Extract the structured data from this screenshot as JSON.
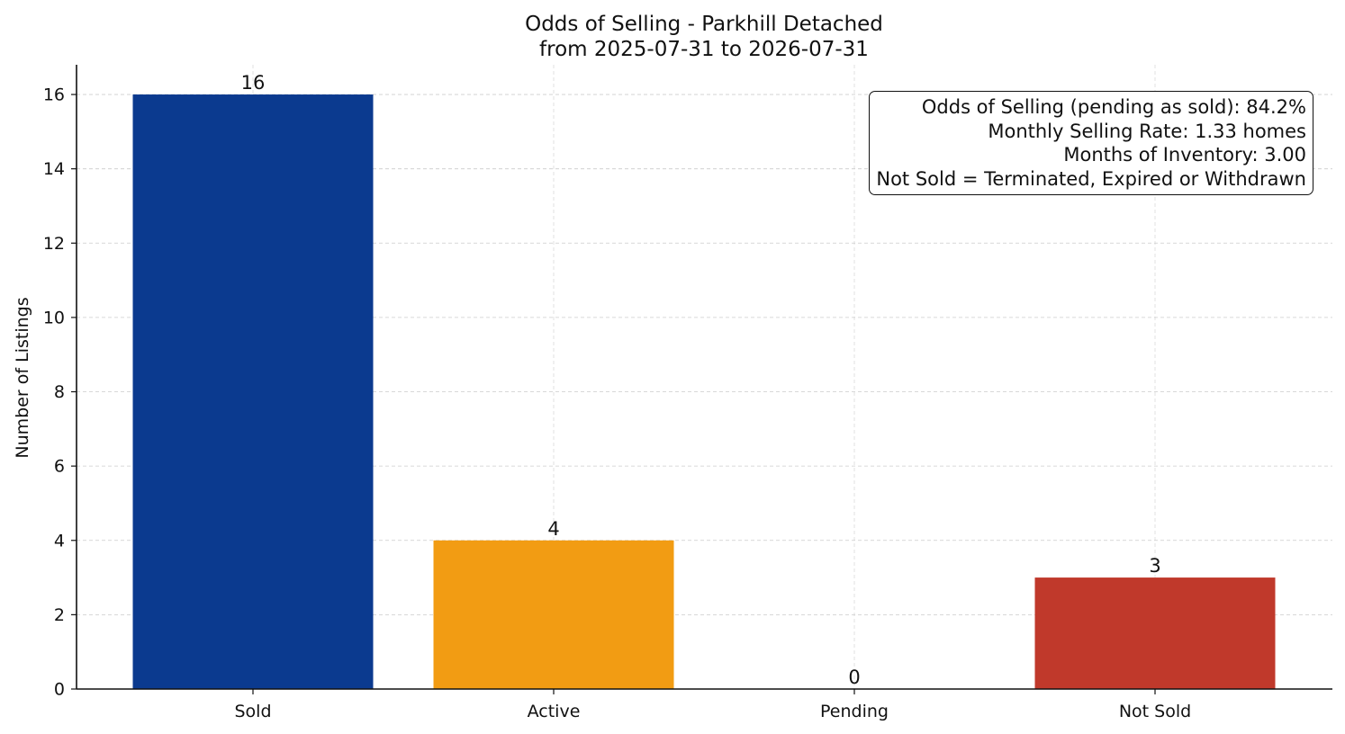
{
  "chart_data": {
    "type": "bar",
    "title": "Odds of Selling - Parkhill Detached",
    "subtitle": "from 2025-07-31 to 2026-07-31",
    "xlabel": "",
    "ylabel": "Number of Listings",
    "categories": [
      "Sold",
      "Active",
      "Pending",
      "Not Sold"
    ],
    "values": [
      16,
      4,
      0,
      3
    ],
    "data_labels": [
      "16",
      "4",
      "0",
      "3"
    ],
    "colors": [
      "#0b3a8f",
      "#f29c13",
      "#f0a030",
      "#c0392b"
    ],
    "ylim": [
      0,
      16.8
    ],
    "yticks": [
      0,
      2,
      4,
      6,
      8,
      10,
      12,
      14,
      16
    ],
    "grid": true,
    "annotation": {
      "placement": "top-right",
      "lines": [
        "Odds of Selling (pending as sold): 84.2%",
        "Monthly Selling Rate: 1.33 homes",
        "Months of Inventory: 3.00",
        "Not Sold = Terminated, Expired or Withdrawn"
      ]
    }
  }
}
